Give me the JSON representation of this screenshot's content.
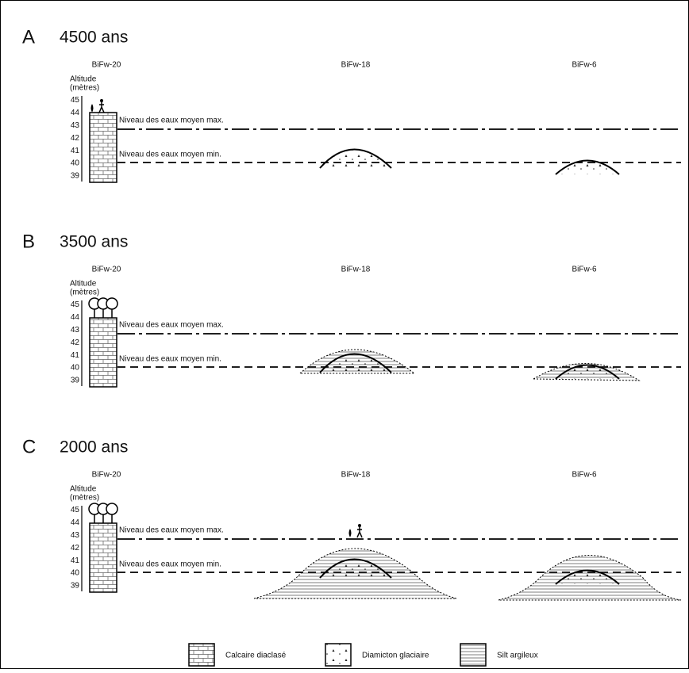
{
  "panels": [
    {
      "letter": "A",
      "title": "4500 ans",
      "sites": [
        "BiFw-20",
        "BiFw-18",
        "BiFw-6"
      ],
      "axis_label": [
        "Altitude",
        "(mètres)"
      ],
      "ticks": [
        45,
        44,
        43,
        42,
        41,
        40,
        39
      ],
      "max_level": "Niveau des eaux moyen max.",
      "min_level": "Niveau des eaux moyen min."
    },
    {
      "letter": "B",
      "title": "3500 ans",
      "sites": [
        "BiFw-20",
        "BiFw-18",
        "BiFw-6"
      ],
      "axis_label": [
        "Altitude",
        "(mètres)"
      ],
      "ticks": [
        45,
        44,
        43,
        42,
        41,
        40,
        39
      ],
      "max_level": "Niveau des eaux moyen max.",
      "min_level": "Niveau des eaux moyen min."
    },
    {
      "letter": "C",
      "title": "2000 ans",
      "sites": [
        "BiFw-20",
        "BiFw-18",
        "BiFw-6"
      ],
      "axis_label": [
        "Altitude",
        "(mètres)"
      ],
      "ticks": [
        45,
        44,
        43,
        42,
        41,
        40,
        39
      ],
      "max_level": "Niveau des eaux moyen max.",
      "min_level": "Niveau des eaux moyen min."
    }
  ],
  "legend": [
    "Calcaire diaclasé",
    "Diamicton glaciaire",
    "Silt argileux"
  ]
}
